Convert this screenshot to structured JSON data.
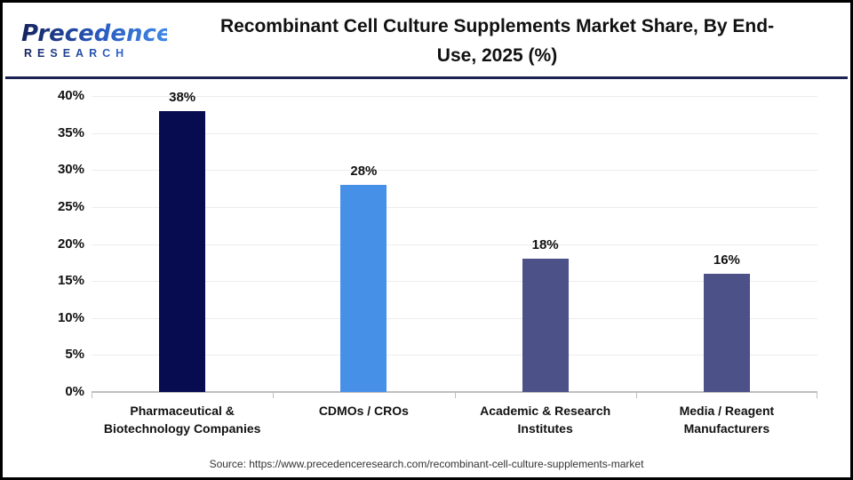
{
  "header": {
    "logo": {
      "brand": "Precedence",
      "sub": "RESEARCH"
    },
    "title": "Recombinant Cell Culture Supplements Market Share, By End-Use, 2025 (%)"
  },
  "chart_data": {
    "type": "bar",
    "title": "Recombinant Cell Culture Supplements Market Share, By End-Use, 2025 (%)",
    "categories": [
      "Pharmaceutical & Biotechnology Companies",
      "CDMOs / CROs",
      "Academic & Research Institutes",
      "Media / Reagent Manufacturers"
    ],
    "values": [
      38,
      28,
      18,
      16
    ],
    "data_labels": [
      "38%",
      "28%",
      "18%",
      "16%"
    ],
    "bar_colors": [
      "#060c4f",
      "#4690e8",
      "#4c5188",
      "#4c5188"
    ],
    "xlabel": "",
    "ylabel": "",
    "ylim": [
      0,
      40
    ],
    "ytick_values": [
      0,
      5,
      10,
      15,
      20,
      25,
      30,
      35,
      40
    ],
    "ytick_labels": [
      "0%",
      "5%",
      "10%",
      "15%",
      "20%",
      "25%",
      "30%",
      "35%",
      "40%"
    ],
    "grid": "horizontal",
    "legend": "none",
    "colors": {
      "gridline": "#ececec",
      "axis_line": "#bfbfbf",
      "label_text": "#111111"
    }
  },
  "footer": {
    "source": "Source: https://www.precedenceresearch.com/recombinant-cell-culture-supplements-market"
  }
}
